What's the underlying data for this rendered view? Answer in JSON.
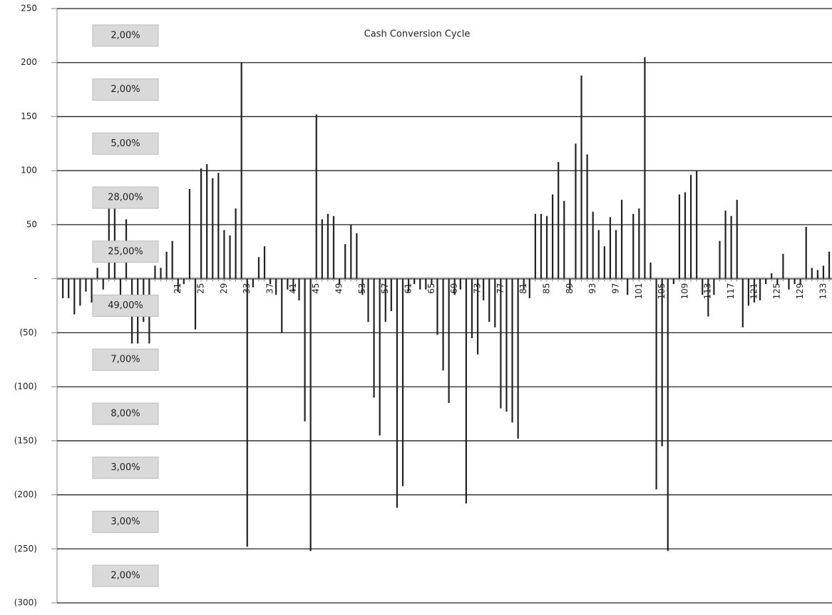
{
  "chart_data": {
    "type": "bar",
    "title": "Cash Conversion Cycle",
    "categories": [
      null,
      null,
      null,
      null,
      null,
      null,
      null,
      null,
      null,
      null,
      null,
      null,
      null,
      null,
      null,
      null,
      null,
      null,
      null,
      null,
      "21",
      null,
      null,
      null,
      "25",
      null,
      null,
      null,
      "29",
      null,
      null,
      null,
      "33",
      null,
      null,
      null,
      "37",
      null,
      null,
      null,
      "41",
      null,
      null,
      null,
      "45",
      null,
      null,
      null,
      "49",
      null,
      null,
      null,
      "53",
      null,
      null,
      null,
      "57",
      null,
      null,
      null,
      "61",
      null,
      null,
      null,
      "65",
      null,
      null,
      null,
      "69",
      null,
      null,
      null,
      "73",
      null,
      null,
      null,
      "77",
      null,
      null,
      null,
      "81",
      null,
      null,
      null,
      "85",
      null,
      null,
      null,
      "89",
      null,
      null,
      null,
      "93",
      null,
      null,
      null,
      "97",
      null,
      null,
      null,
      "101",
      null,
      null,
      null,
      "105",
      null,
      null,
      null,
      "109",
      null,
      null,
      null,
      "113",
      null,
      null,
      null,
      "117",
      null,
      null,
      null,
      "121",
      null,
      null,
      null,
      "125",
      null,
      null,
      null,
      "129",
      null,
      null,
      null,
      "133",
      null
    ],
    "values": [
      -18,
      -18,
      -33,
      -25,
      -12,
      -22,
      10,
      -10,
      65,
      70,
      -20,
      55,
      -60,
      -60,
      -40,
      -60,
      12,
      10,
      25,
      35,
      -12,
      -5,
      83,
      -47,
      102,
      106,
      93,
      98,
      45,
      40,
      65,
      200,
      -248,
      -8,
      20,
      30,
      -5,
      -15,
      -50,
      -10,
      -12,
      -20,
      -132,
      -252,
      152,
      55,
      60,
      58,
      -5,
      32,
      50,
      42,
      -15,
      -40,
      -110,
      -145,
      -40,
      -30,
      -212,
      -192,
      -12,
      -5,
      -10,
      -10,
      -5,
      -52,
      -85,
      -115,
      -15,
      -10,
      -208,
      -55,
      -70,
      -20,
      -40,
      -45,
      -120,
      -123,
      -133,
      -148,
      -10,
      -18,
      60,
      60,
      58,
      78,
      108,
      72,
      -10,
      125,
      188,
      115,
      62,
      45,
      30,
      57,
      45,
      73,
      -15,
      60,
      65,
      205,
      15,
      -195,
      -155,
      -252,
      -5,
      78,
      80,
      96,
      100,
      -15,
      -35,
      -15,
      35,
      63,
      58,
      73,
      -45,
      -25,
      -22,
      -20,
      -5,
      5,
      -5,
      23,
      -10,
      -5,
      -5,
      48,
      10,
      8,
      12,
      25
    ],
    "color": "#222222",
    "ylim": [
      -300,
      250
    ],
    "yticks": [
      {
        "value": -300,
        "label": "(300)"
      },
      {
        "value": -250,
        "label": "(250)"
      },
      {
        "value": -200,
        "label": "(200)"
      },
      {
        "value": -150,
        "label": "(150)"
      },
      {
        "value": -100,
        "label": "(100)"
      },
      {
        "value": -50,
        "label": "(50)"
      },
      {
        "value": 0,
        "label": "-"
      },
      50,
      100,
      150,
      200,
      250
    ],
    "grid": true,
    "annotations": [
      "2,00%",
      "2,00%",
      "5,00%",
      "28,00%",
      "25,00%",
      "49,00%",
      "7,00%",
      "8,00%",
      "3,00%",
      "3,00%",
      "2,00%"
    ]
  }
}
